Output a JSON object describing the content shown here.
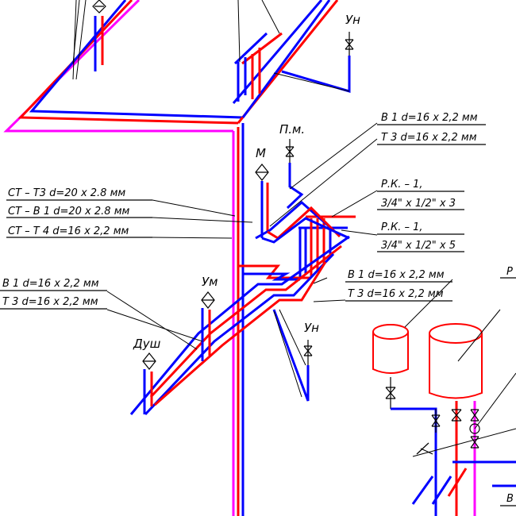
{
  "colors": {
    "cold_water": "#0000ff",
    "hot_water": "#ff0000",
    "circulation": "#ff00ff",
    "leader": "#000000"
  },
  "labels": {
    "un_top": "Ун",
    "pm": "П.м.",
    "m": "М",
    "b1_top": "В 1  d=16 x 2,2  мм",
    "t3_top": "Т 3  d=16 x 2,2  мм",
    "rk1_a": "Р.К. – 1,",
    "rk1_a_size": "3/4\" x 1/2\" x 3",
    "rk1_b": "Р.К. – 1,",
    "rk1_b_size": "3/4\" x 1/2\" x 5",
    "st_t3": "СТ  –  Т3  d=20 x 2.8  мм",
    "st_b1": "СТ  –  В 1  d=20 x 2.8  мм",
    "st_t4": "СТ  –  Т 4  d=16 x 2,2  мм",
    "b1_left": "В 1  d=16 x 2,2  мм",
    "t3_left": "Т 3  d=16 x 2,2  мм",
    "um": "Ум",
    "dush": "Душ",
    "b1_mid": "В 1  d=16 x 2,2  мм",
    "t3_mid": "Т 3  d=16 x 2,2  мм",
    "un_mid": "Ун",
    "r_right": "Р",
    "b_right": "В"
  }
}
